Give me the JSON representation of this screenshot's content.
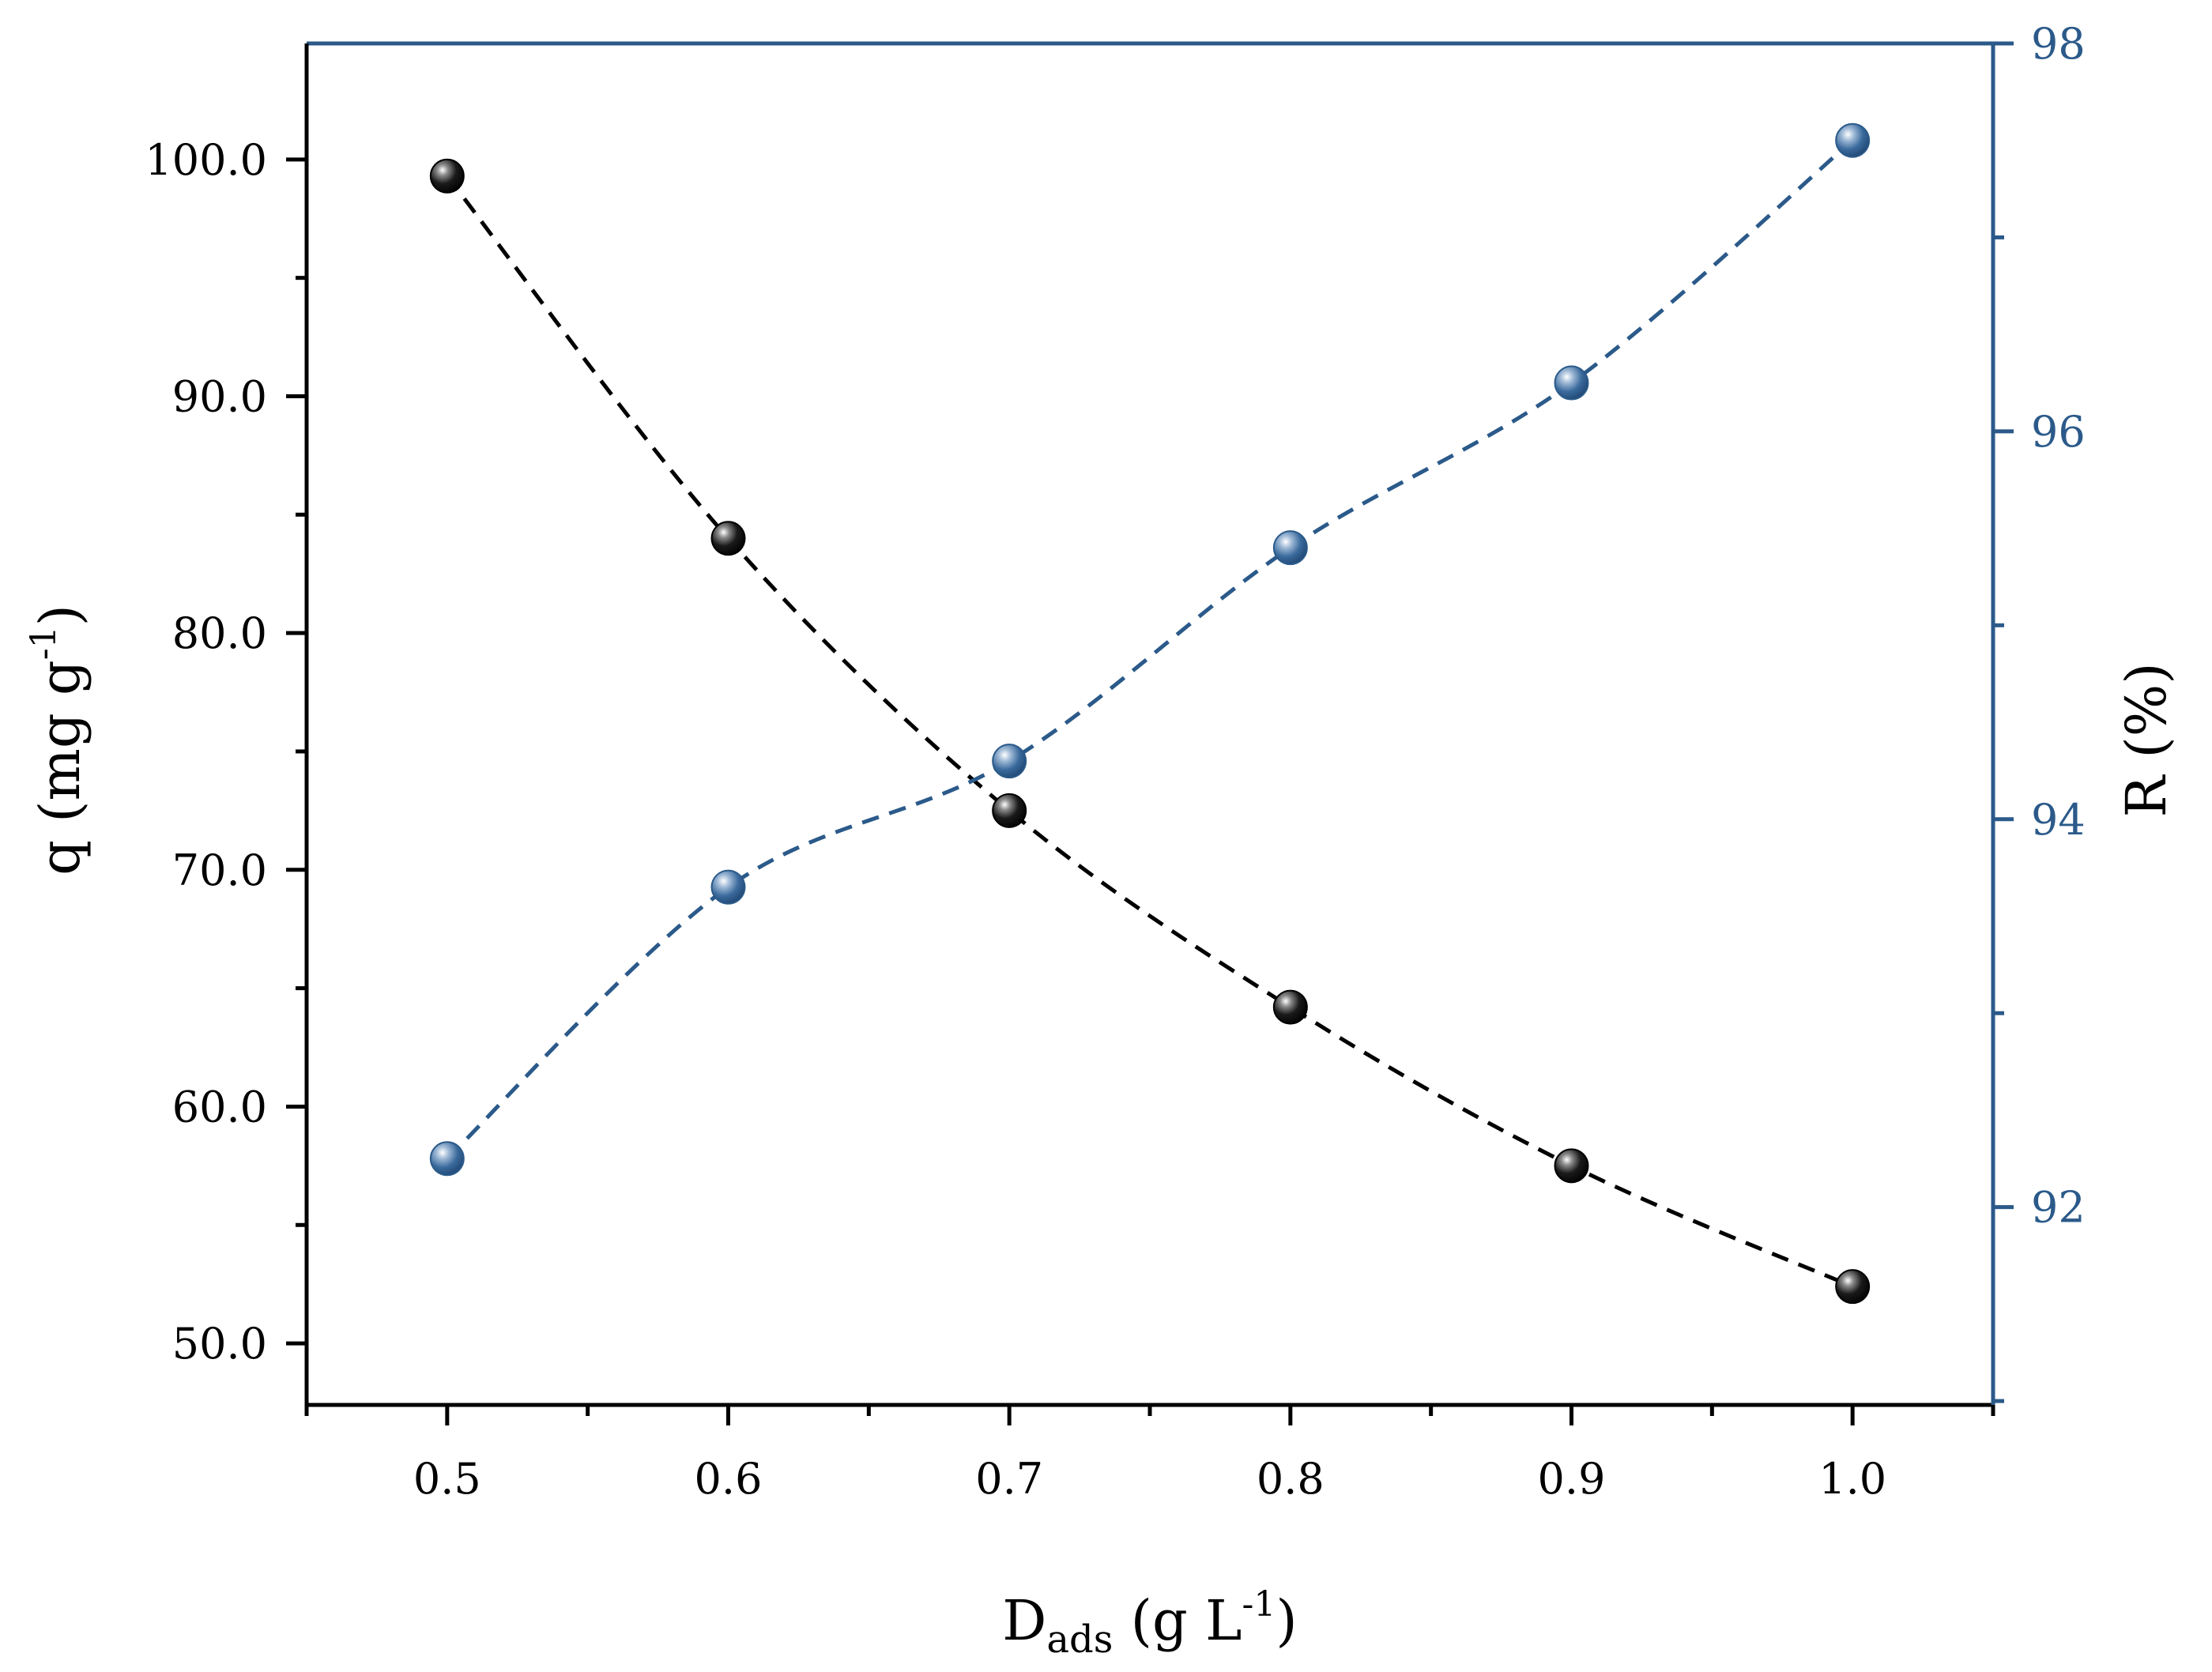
{
  "chart_data": {
    "type": "scatter",
    "title": "",
    "x": [
      0.5,
      0.6,
      0.7,
      0.8,
      0.9,
      1.0
    ],
    "xlim": [
      0.45,
      1.05
    ],
    "x_ticks": [
      "0.5",
      "0.6",
      "0.7",
      "0.8",
      "0.9",
      "1.0"
    ],
    "x_minor_ticks": [
      0.45,
      0.55,
      0.65,
      0.75,
      0.85,
      0.95,
      1.05
    ],
    "xlabel": {
      "main": "D",
      "sub": "ads",
      "mid": " (g L",
      "sup": "-1",
      "end": ")"
    },
    "series": [
      {
        "name": "q",
        "axis": "left",
        "color": "#000000",
        "line_style": "dashed",
        "values": [
          99.3,
          84.0,
          72.5,
          64.2,
          57.5,
          52.4
        ]
      },
      {
        "name": "R",
        "axis": "right",
        "color": "#2b5a8a",
        "line_style": "dashed",
        "values": [
          92.25,
          93.65,
          94.3,
          95.4,
          96.25,
          97.5
        ]
      }
    ],
    "y_left": {
      "lim": [
        47.4,
        104.9
      ],
      "ticks": [
        50,
        60,
        70,
        80,
        90,
        100
      ],
      "tick_labels": [
        "50.0",
        "60.0",
        "70.0",
        "80.0",
        "90.0",
        "100.0"
      ],
      "minor_ticks": [
        55,
        65,
        75,
        85,
        95
      ],
      "label": {
        "main": "q (mg g",
        "sup": "-1",
        "end": ")"
      },
      "color": "#000000"
    },
    "y_right": {
      "lim": [
        90.98,
        98.0
      ],
      "ticks": [
        92,
        94,
        96,
        98
      ],
      "tick_labels": [
        "92",
        "94",
        "96",
        "98"
      ],
      "minor_ticks": [
        91,
        93,
        95,
        97
      ],
      "label": {
        "main": "R (%)"
      },
      "color": "#2b5a8a"
    },
    "grid": false,
    "legend": "none"
  }
}
